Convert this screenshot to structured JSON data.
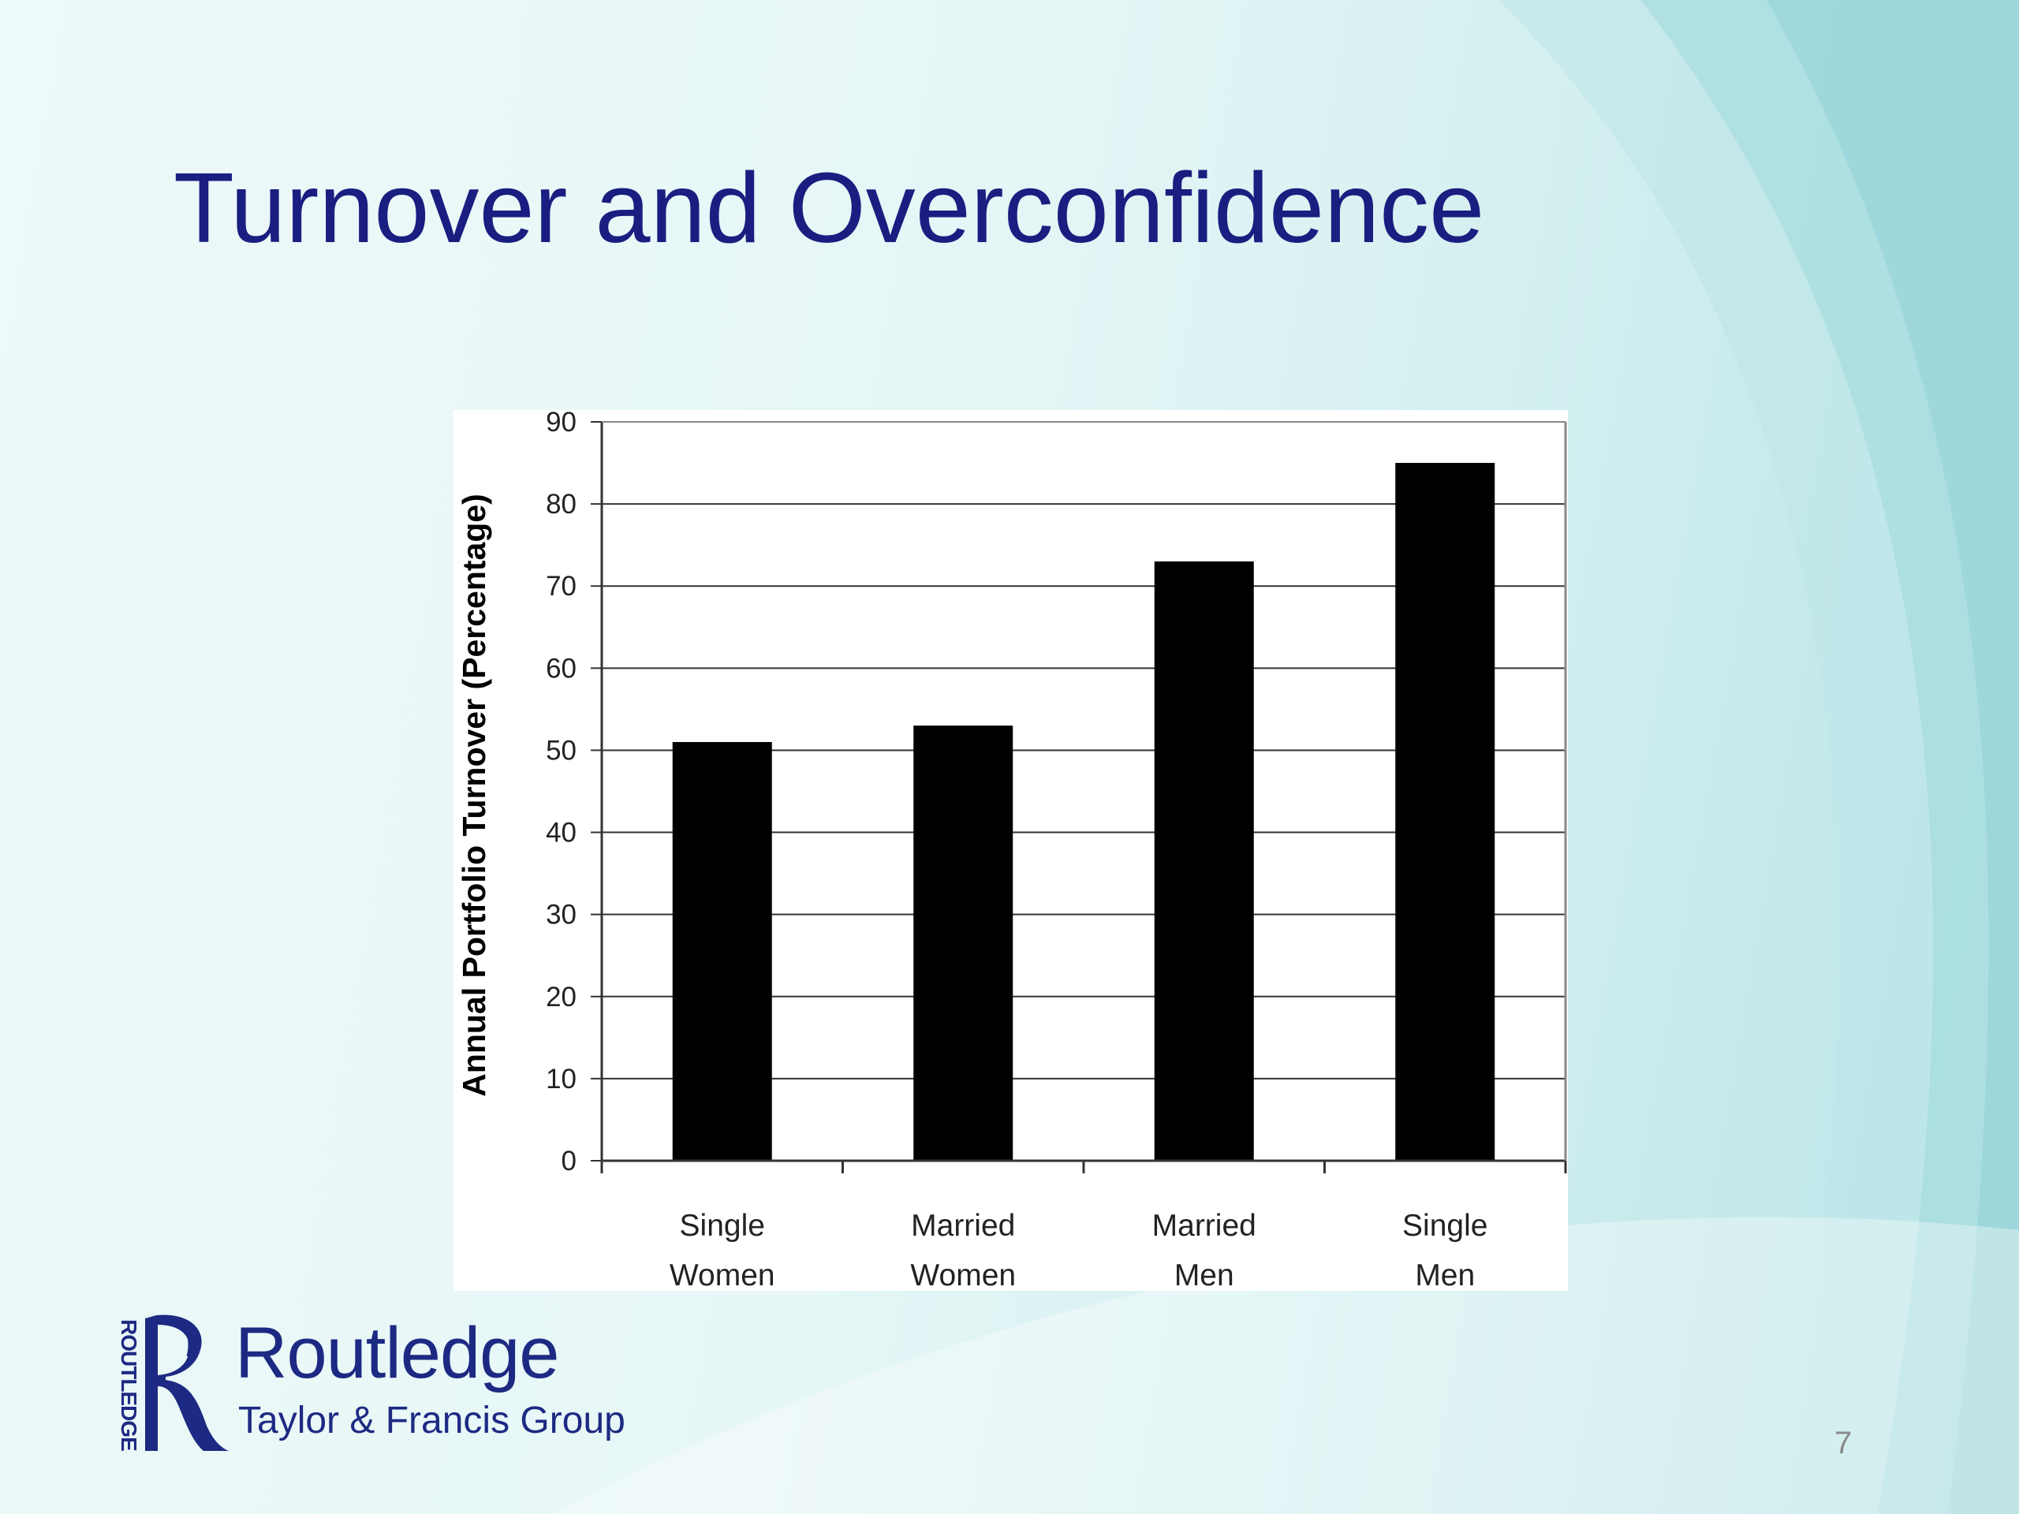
{
  "slide": {
    "title": "Turnover and Overconfidence",
    "page_number": "7"
  },
  "logo": {
    "vertical_text": "ROUTLEDGE",
    "name": "Routledge",
    "tagline": "Taylor & Francis Group"
  },
  "colors": {
    "title": "#1a1e80",
    "bar": "#000000",
    "logo": "#1d2a83"
  },
  "chart_data": {
    "type": "bar",
    "categories": [
      [
        "Single",
        "Women"
      ],
      [
        "Married",
        "Women"
      ],
      [
        "Married",
        "Men"
      ],
      [
        "Single",
        "Men"
      ]
    ],
    "values": [
      51,
      53,
      73,
      85
    ],
    "title": "",
    "xlabel": "",
    "ylabel": "Annual Portfolio Turnover (Percentage)",
    "ylim": [
      0,
      90
    ],
    "yticks": [
      0,
      10,
      20,
      30,
      40,
      50,
      60,
      70,
      80,
      90
    ],
    "grid": "horizontal",
    "legend": "none"
  }
}
